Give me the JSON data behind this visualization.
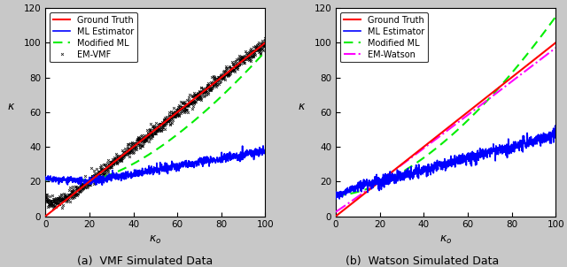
{
  "xlim": [
    0,
    100
  ],
  "ylim": [
    0,
    120
  ],
  "xlabel": "$\\kappa_o$",
  "ylabel": "$\\kappa$",
  "xticks": [
    0,
    20,
    40,
    60,
    80,
    100
  ],
  "yticks": [
    0,
    20,
    40,
    60,
    80,
    100,
    120
  ],
  "subplot_a_title": "(a)  VMF Simulated Data",
  "subplot_b_title": "(b)  Watson Simulated Data",
  "legend_a": [
    "Ground Truth",
    "ML Estimator",
    "Modified ML",
    "EM-VMF"
  ],
  "legend_b": [
    "Ground Truth",
    "ML Estimator",
    "Modified ML",
    "EM-Watson"
  ],
  "colors": {
    "ground_truth": "#ff0000",
    "ml_estimator": "#0000ff",
    "modified_ml": "#00ee00",
    "em_vmf": "#000000",
    "em_watson": "#ff00ff"
  },
  "bg_color": "#ffffff",
  "fig_bg": "#c8c8c8"
}
